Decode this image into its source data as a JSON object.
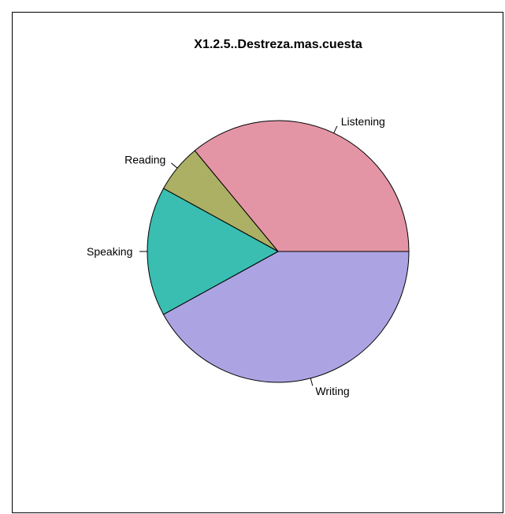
{
  "chart_data": {
    "type": "pie",
    "title": "X1.2.5..Destreza.mas.cuesta",
    "start_angle_deg": 0,
    "direction": "counterclockwise",
    "slices": [
      {
        "label": "Listening",
        "value": 36,
        "color": "#E495A5"
      },
      {
        "label": "Reading",
        "value": 6,
        "color": "#ABB065"
      },
      {
        "label": "Speaking",
        "value": 16,
        "color": "#39BEB1"
      },
      {
        "label": "Writing",
        "value": 42,
        "color": "#ACA4E2"
      }
    ]
  }
}
